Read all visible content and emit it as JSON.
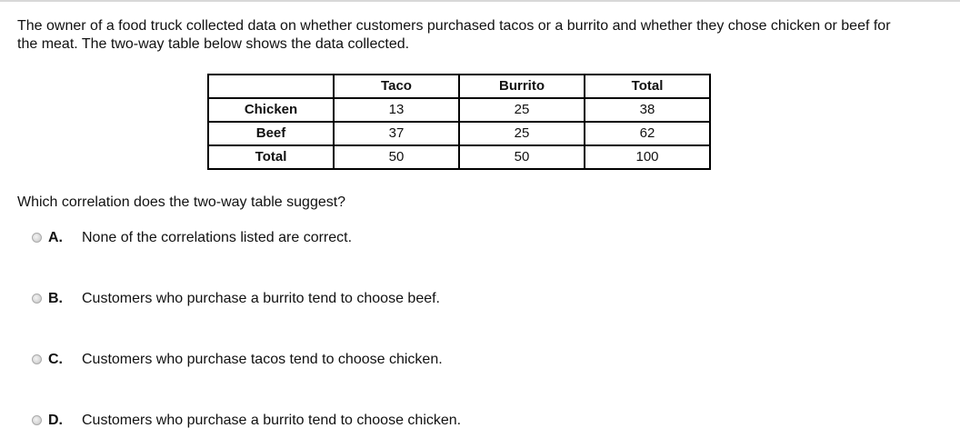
{
  "question": {
    "stem": "The owner of a food truck collected data on whether customers purchased tacos or a burrito and whether they chose chicken or beef for the meat. The two-way table below shows the data collected.",
    "prompt": "Which correlation does the two-way table suggest?"
  },
  "table": {
    "headers": [
      "",
      "Taco",
      "Burrito",
      "Total"
    ],
    "rows": [
      [
        "Chicken",
        "13",
        "25",
        "38"
      ],
      [
        "Beef",
        "37",
        "25",
        "62"
      ],
      [
        "Total",
        "50",
        "50",
        "100"
      ]
    ]
  },
  "options": [
    {
      "letter": "A.",
      "text": "None of the correlations listed are correct."
    },
    {
      "letter": "B.",
      "text": "Customers who purchase a burrito tend to choose beef."
    },
    {
      "letter": "C.",
      "text": "Customers who purchase tacos tend to choose chicken."
    },
    {
      "letter": "D.",
      "text": "Customers who purchase a burrito tend to choose chicken."
    }
  ]
}
